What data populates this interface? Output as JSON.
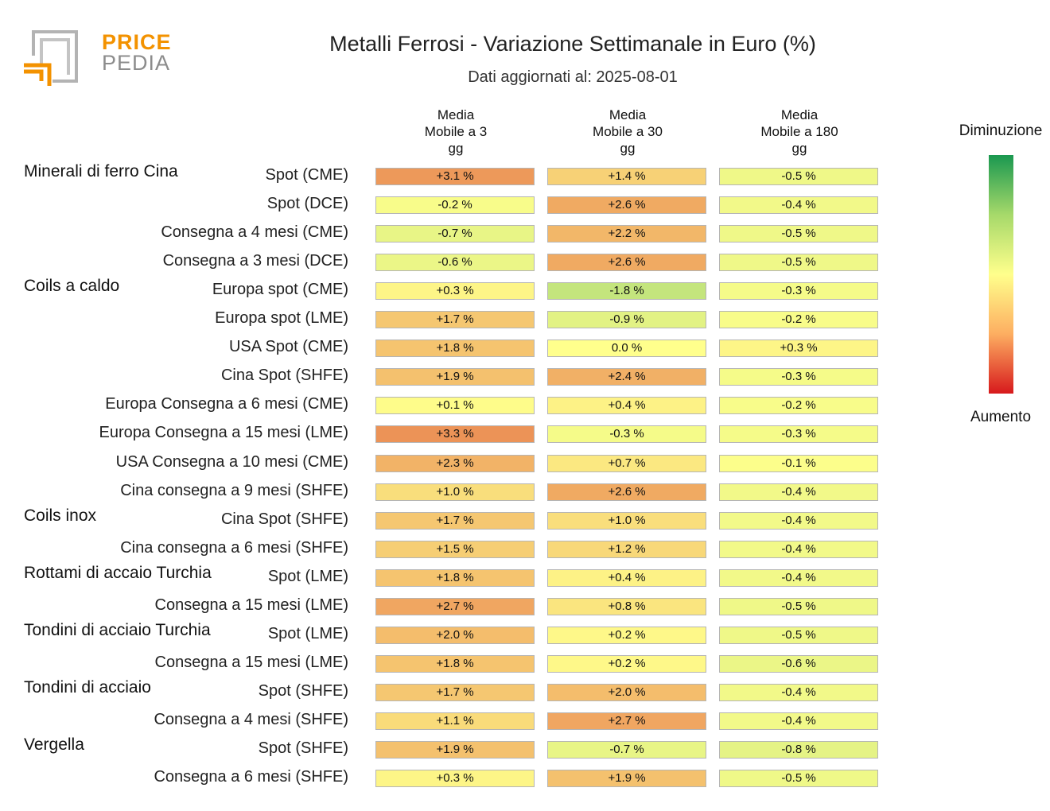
{
  "logo": {
    "line1": "PRICE",
    "line2": "PEDIA"
  },
  "chart_data": {
    "type": "table",
    "title": "Metalli Ferrosi - Variazione Settimanale in Euro (%)",
    "subtitle": "Dati aggiornati al: 2025-08-01",
    "columns": [
      [
        "Media",
        "Mobile a 3",
        "gg"
      ],
      [
        "Media",
        "Mobile a 30",
        "gg"
      ],
      [
        "Media",
        "Mobile a 180",
        "gg"
      ]
    ],
    "legend": {
      "top": "Diminuzione",
      "bottom": "Aumento"
    },
    "groups": [
      {
        "name": "Minerali di ferro Cina",
        "first_row": 0
      },
      {
        "name": "Coils a caldo",
        "first_row": 4
      },
      {
        "name": "Coils inox",
        "first_row": 12
      },
      {
        "name": "Rottami di accaio Turchia",
        "first_row": 14
      },
      {
        "name": "Tondini di acciaio Turchia",
        "first_row": 16
      },
      {
        "name": "Tondini di acciaio",
        "first_row": 18
      },
      {
        "name": "Vergella",
        "first_row": 20
      }
    ],
    "rows": [
      {
        "label": "Spot (CME)",
        "values": [
          3.1,
          1.4,
          -0.5
        ],
        "labels": [
          "+3.1 %",
          "+1.4 %",
          "-0.5 %"
        ]
      },
      {
        "label": "Spot (DCE)",
        "values": [
          -0.2,
          2.6,
          -0.4
        ],
        "labels": [
          "-0.2 %",
          "+2.6 %",
          "-0.4 %"
        ]
      },
      {
        "label": "Consegna a 4 mesi (CME)",
        "values": [
          -0.7,
          2.2,
          -0.5
        ],
        "labels": [
          "-0.7 %",
          "+2.2 %",
          "-0.5 %"
        ]
      },
      {
        "label": "Consegna a 3 mesi (DCE)",
        "values": [
          -0.6,
          2.6,
          -0.5
        ],
        "labels": [
          "-0.6 %",
          "+2.6 %",
          "-0.5 %"
        ]
      },
      {
        "label": "Europa spot (CME)",
        "values": [
          0.3,
          -1.8,
          -0.3
        ],
        "labels": [
          "+0.3 %",
          "-1.8 %",
          "-0.3 %"
        ]
      },
      {
        "label": "Europa spot (LME)",
        "values": [
          1.7,
          -0.9,
          -0.2
        ],
        "labels": [
          "+1.7 %",
          "-0.9 %",
          "-0.2 %"
        ]
      },
      {
        "label": "USA Spot (CME)",
        "values": [
          1.8,
          0.0,
          0.3
        ],
        "labels": [
          "+1.8 %",
          "0.0 %",
          "+0.3 %"
        ]
      },
      {
        "label": "Cina Spot (SHFE)",
        "values": [
          1.9,
          2.4,
          -0.3
        ],
        "labels": [
          "+1.9 %",
          "+2.4 %",
          "-0.3 %"
        ]
      },
      {
        "label": "Europa Consegna a 6 mesi (CME)",
        "values": [
          0.1,
          0.4,
          -0.2
        ],
        "labels": [
          "+0.1 %",
          "+0.4 %",
          "-0.2 %"
        ]
      },
      {
        "label": "Europa Consegna a 15 mesi (LME)",
        "values": [
          3.3,
          -0.3,
          -0.3
        ],
        "labels": [
          "+3.3 %",
          "-0.3 %",
          "-0.3 %"
        ]
      },
      {
        "label": "USA Consegna a 10 mesi (CME)",
        "values": [
          2.3,
          0.7,
          -0.1
        ],
        "labels": [
          "+2.3 %",
          "+0.7 %",
          "-0.1 %"
        ]
      },
      {
        "label": "Cina consegna a 9 mesi (SHFE)",
        "values": [
          1.0,
          2.6,
          -0.4
        ],
        "labels": [
          "+1.0 %",
          "+2.6 %",
          "-0.4 %"
        ]
      },
      {
        "label": "Cina Spot (SHFE)",
        "values": [
          1.7,
          1.0,
          -0.4
        ],
        "labels": [
          "+1.7 %",
          "+1.0 %",
          "-0.4 %"
        ]
      },
      {
        "label": "Cina consegna a 6 mesi (SHFE)",
        "values": [
          1.5,
          1.2,
          -0.4
        ],
        "labels": [
          "+1.5 %",
          "+1.2 %",
          "-0.4 %"
        ]
      },
      {
        "label": "Spot (LME)",
        "values": [
          1.8,
          0.4,
          -0.4
        ],
        "labels": [
          "+1.8 %",
          "+0.4 %",
          "-0.4 %"
        ]
      },
      {
        "label": "Consegna a 15 mesi (LME)",
        "values": [
          2.7,
          0.8,
          -0.5
        ],
        "labels": [
          "+2.7 %",
          "+0.8 %",
          "-0.5 %"
        ]
      },
      {
        "label": "Spot (LME)",
        "values": [
          2.0,
          0.2,
          -0.5
        ],
        "labels": [
          "+2.0 %",
          "+0.2 %",
          "-0.5 %"
        ]
      },
      {
        "label": "Consegna a 15 mesi (LME)",
        "values": [
          1.8,
          0.2,
          -0.6
        ],
        "labels": [
          "+1.8 %",
          "+0.2 %",
          "-0.6 %"
        ]
      },
      {
        "label": "Spot (SHFE)",
        "values": [
          1.7,
          2.0,
          -0.4
        ],
        "labels": [
          "+1.7 %",
          "+2.0 %",
          "-0.4 %"
        ]
      },
      {
        "label": "Consegna a 4 mesi (SHFE)",
        "values": [
          1.1,
          2.7,
          -0.4
        ],
        "labels": [
          "+1.1 %",
          "+2.7 %",
          "-0.4 %"
        ]
      },
      {
        "label": "Spot (SHFE)",
        "values": [
          1.9,
          -0.7,
          -0.8
        ],
        "labels": [
          "+1.9 %",
          "-0.7 %",
          "-0.8 %"
        ]
      },
      {
        "label": "Consegna a 6 mesi (SHFE)",
        "values": [
          0.3,
          1.9,
          -0.5
        ],
        "labels": [
          "+0.3 %",
          "+1.9 %",
          "-0.5 %"
        ]
      }
    ]
  }
}
